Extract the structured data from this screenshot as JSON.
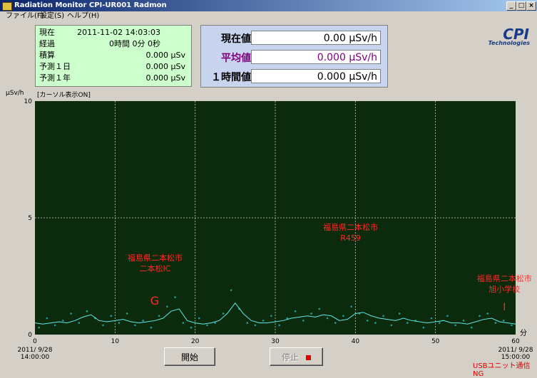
{
  "window": {
    "title": "Radiation Monitor CPI-UR001 Radmon",
    "menu": [
      "ファイル(F)",
      "設定(S)",
      "ヘルプ(H)"
    ]
  },
  "status": {
    "rows": [
      {
        "label": "現在",
        "value": "2011-11-02 14:03:03"
      },
      {
        "label": "経過",
        "value": "0時間 0分 0秒"
      },
      {
        "label": "積算",
        "value": "0.000 μSv"
      },
      {
        "label": "予測１日",
        "value": "0.000 μSv"
      },
      {
        "label": "予測１年",
        "value": "0.000 μSv"
      }
    ]
  },
  "readings": [
    {
      "label": "現在値",
      "value": "0.00 μSv/h",
      "color": "#000000"
    },
    {
      "label": "平均値",
      "value": "0.000 μSv/h",
      "color": "#800080"
    },
    {
      "label": "１時間値",
      "value": "0.000 μSv/h",
      "color": "#000000"
    }
  ],
  "logo": {
    "main": "CPI",
    "sub": "Technologies"
  },
  "buttons": {
    "start": "開始",
    "stop": "停止"
  },
  "status_text": "USBユニット通信NG",
  "chart_data": {
    "type": "line",
    "y_label": "μSv/h",
    "x_label": "分",
    "cursor_label": "[カーソル表示ON]",
    "x_start_label": [
      "2011/ 9/28",
      "14:00:00"
    ],
    "x_end_label": [
      "2011/ 9/28",
      "15:00:00"
    ],
    "xlim": [
      0,
      60
    ],
    "xticks": [
      0,
      10,
      20,
      30,
      40,
      50,
      60
    ],
    "ylim": [
      0,
      10
    ],
    "yticks": [
      0,
      5,
      10
    ],
    "grid": true,
    "background": "#0c2a0c",
    "series": [
      {
        "kind": "scatter",
        "color": "#1f9f96",
        "x": [
          0.5,
          1.5,
          2.5,
          3.5,
          4.5,
          5.5,
          6.5,
          7.5,
          8.5,
          9.5,
          10.5,
          11.5,
          12.5,
          13.5,
          14.5,
          15.5,
          16.5,
          17.5,
          18.5,
          19.5,
          20.5,
          21.5,
          22.5,
          23.5,
          24.5,
          25.5,
          26.5,
          27.5,
          28.5,
          29.5,
          30.5,
          31.5,
          32.5,
          33.5,
          34.5,
          35.5,
          36.5,
          37.5,
          38.5,
          39.5,
          40.5,
          41.5,
          42.5,
          43.5,
          44.5,
          45.5,
          46.5,
          47.5,
          48.5,
          49.5,
          50.5,
          51.5,
          52.5,
          53.5,
          54.5,
          55.5,
          56.5,
          57.5,
          58.5,
          59.5
        ],
        "values": [
          0.3,
          0.7,
          0.4,
          0.6,
          0.9,
          0.5,
          1.0,
          0.7,
          0.4,
          0.8,
          0.5,
          0.9,
          0.4,
          0.6,
          0.3,
          0.8,
          1.2,
          1.6,
          0.5,
          0.3,
          0.7,
          0.4,
          0.5,
          0.9,
          1.9,
          1.1,
          0.5,
          0.4,
          0.6,
          0.8,
          0.4,
          0.7,
          1.0,
          0.6,
          0.9,
          1.1,
          0.7,
          0.5,
          0.8,
          1.2,
          0.9,
          0.6,
          0.5,
          0.8,
          0.4,
          0.9,
          0.5,
          0.6,
          0.3,
          0.7,
          0.5,
          0.8,
          0.4,
          0.6,
          0.3,
          0.8,
          0.9,
          0.5,
          0.6,
          0.4
        ]
      },
      {
        "kind": "line",
        "color": "#5fe8e8",
        "x": [
          0,
          1,
          2,
          3,
          4,
          5,
          6,
          7,
          8,
          9,
          10,
          11,
          12,
          13,
          14,
          15,
          16,
          17,
          18,
          19,
          20,
          21,
          22,
          23,
          24,
          25,
          26,
          27,
          28,
          29,
          30,
          31,
          32,
          33,
          34,
          35,
          36,
          37,
          38,
          39,
          40,
          41,
          42,
          43,
          44,
          45,
          46,
          47,
          48,
          49,
          50,
          51,
          52,
          53,
          54,
          55,
          56,
          57,
          58,
          59,
          60
        ],
        "values": [
          0.5,
          0.45,
          0.5,
          0.55,
          0.5,
          0.6,
          0.75,
          0.85,
          0.6,
          0.55,
          0.6,
          0.65,
          0.55,
          0.5,
          0.55,
          0.6,
          0.7,
          1.0,
          1.1,
          0.6,
          0.5,
          0.45,
          0.5,
          0.6,
          0.9,
          1.35,
          0.9,
          0.6,
          0.5,
          0.5,
          0.55,
          0.6,
          0.7,
          0.75,
          0.8,
          0.75,
          0.85,
          0.8,
          0.6,
          0.65,
          0.9,
          0.95,
          0.8,
          0.7,
          0.65,
          0.6,
          0.7,
          0.6,
          0.55,
          0.5,
          0.55,
          0.6,
          0.5,
          0.5,
          0.45,
          0.55,
          0.65,
          0.7,
          0.55,
          0.5,
          0.45
        ]
      }
    ],
    "annotations": [
      {
        "text": [
          "福島県二本松市",
          "二本松IC"
        ],
        "x": 15.0,
        "y": 3.17,
        "color": "#ff2a2a",
        "size": 11
      },
      {
        "text": [
          "福島県二本松市",
          "R459"
        ],
        "x": 39.4,
        "y": 4.48,
        "color": "#ff2a2a",
        "size": 11
      },
      {
        "text": [
          "福島県二本松市",
          "旭小学校"
        ],
        "x": 58.6,
        "y": 2.29,
        "color": "#ff2a2a",
        "size": 11
      },
      {
        "text": [
          "G"
        ],
        "x": 14.95,
        "y": 1.28,
        "color": "#ff2a2a",
        "size": 16
      },
      {
        "text": [
          "I"
        ],
        "x": 58.6,
        "y": 1.04,
        "color": "#ff2a2a",
        "size": 14
      }
    ]
  }
}
